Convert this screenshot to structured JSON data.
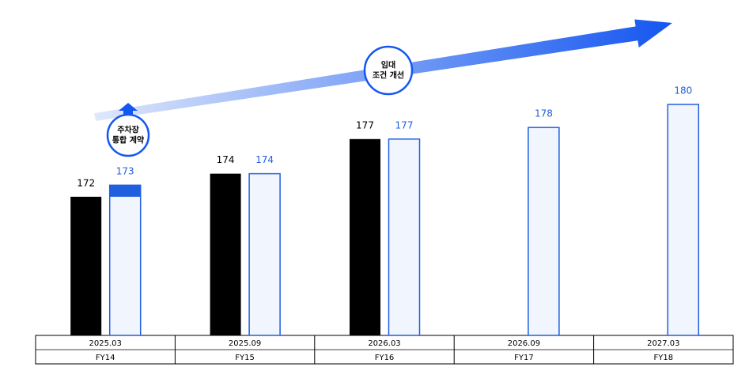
{
  "chart_data": {
    "type": "bar",
    "categories": [
      "2025.03",
      "2025.09",
      "2026.03",
      "2026.09",
      "2027.03"
    ],
    "fiscal_years": [
      "FY14",
      "FY15",
      "FY16",
      "FY17",
      "FY18"
    ],
    "series": [
      {
        "color": "#000000",
        "values": [
          172,
          174,
          177,
          null,
          null
        ]
      },
      {
        "color": "#1f5fe0",
        "values": [
          173,
          174,
          177,
          178,
          180
        ]
      }
    ],
    "highlight_index": 0,
    "ylim": [
      160,
      185
    ],
    "annotations": [
      {
        "lines": [
          "주차장",
          "통합 계약"
        ]
      },
      {
        "lines": [
          "임대",
          "조건 개선"
        ]
      }
    ]
  }
}
